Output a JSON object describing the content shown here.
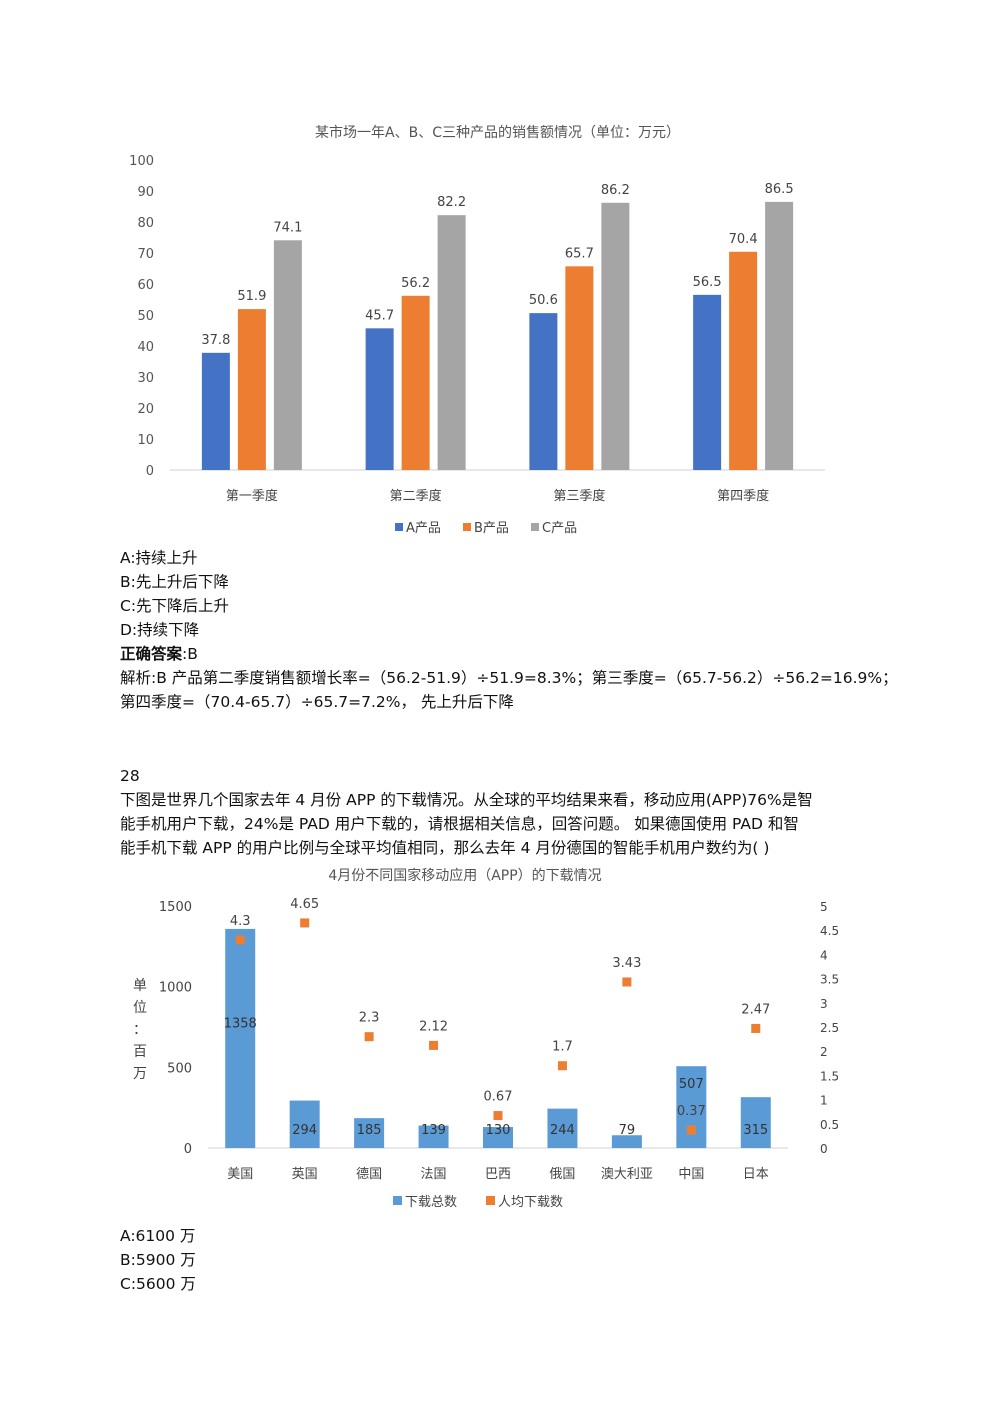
{
  "chart_data": [
    {
      "type": "bar",
      "title": "某市场一年A、B、C三种产品的销售额情况（单位：万元）",
      "categories": [
        "第一季度",
        "第二季度",
        "第三季度",
        "第四季度"
      ],
      "series": [
        {
          "name": "A产品",
          "values": [
            37.8,
            45.7,
            50.6,
            56.5
          ],
          "color": "#4472c4"
        },
        {
          "name": "B产品",
          "values": [
            51.9,
            56.2,
            65.7,
            70.4
          ],
          "color": "#ed7d31"
        },
        {
          "name": "C产品",
          "values": [
            74.1,
            82.2,
            86.2,
            86.5
          ],
          "color": "#a5a5a5"
        }
      ],
      "ylim": [
        0,
        100
      ],
      "yticks": [
        0,
        10,
        20,
        30,
        40,
        50,
        60,
        70,
        80,
        90,
        100
      ],
      "legend": "bottom"
    },
    {
      "type": "bar",
      "title": "4月份不同国家移动应用（APP）的下载情况",
      "categories": [
        "美国",
        "英国",
        "德国",
        "法国",
        "巴西",
        "俄国",
        "澳大利亚",
        "中国",
        "日本"
      ],
      "ylabel": "单位：百万",
      "bar_series": {
        "name": "下载总数",
        "values": [
          1358,
          294,
          185,
          139,
          130,
          244,
          79,
          507,
          315
        ],
        "color": "#5b9bd5"
      },
      "point_series": {
        "name": "人均下载数",
        "values": [
          4.3,
          4.65,
          2.3,
          2.12,
          0.67,
          1.7,
          3.43,
          0.37,
          2.47
        ],
        "color": "#ed7d31"
      },
      "ylim_left": [
        0,
        1500
      ],
      "yticks_left": [
        0,
        500,
        1000,
        1500
      ],
      "ylim_right": [
        0,
        5
      ],
      "yticks_right": [
        "0",
        "0.5",
        "1",
        "1.5",
        "2",
        "2.5",
        "3",
        "3.5",
        "4",
        "4.5",
        "5"
      ],
      "legend": "bottom"
    }
  ],
  "q27": {
    "option_a": "A:持续上升",
    "option_b": "B:先上升后下降",
    "option_c": "C:先下降后上升",
    "option_d": "D:持续下降",
    "answer_label": "正确答案",
    "answer_value": ":B",
    "analysis_line1": "解析:B 产品第二季度销售额增长率=（56.2-51.9）÷51.9=8.3%；第三季度=（65.7-56.2）÷56.2=16.9%；",
    "analysis_line2": "第四季度=（70.4-65.7）÷65.7=7.2%，  先上升后下降"
  },
  "q28": {
    "number": "28",
    "stem_line1": "下图是世界几个国家去年 4 月份 APP 的下载情况。从全球的平均结果来看，移动应用(APP)76%是智",
    "stem_line2": "能手机用户下载，24%是 PAD 用户下载的，请根据相关信息，回答问题。  如果德国使用 PAD 和智",
    "stem_line3": "能手机下载 APP 的用户比例与全球平均值相同，那么去年 4 月份德国的智能手机用户数约为(   )",
    "option_a": "A:6100 万",
    "option_b": "B:5900 万",
    "option_c": "C:5600 万"
  }
}
